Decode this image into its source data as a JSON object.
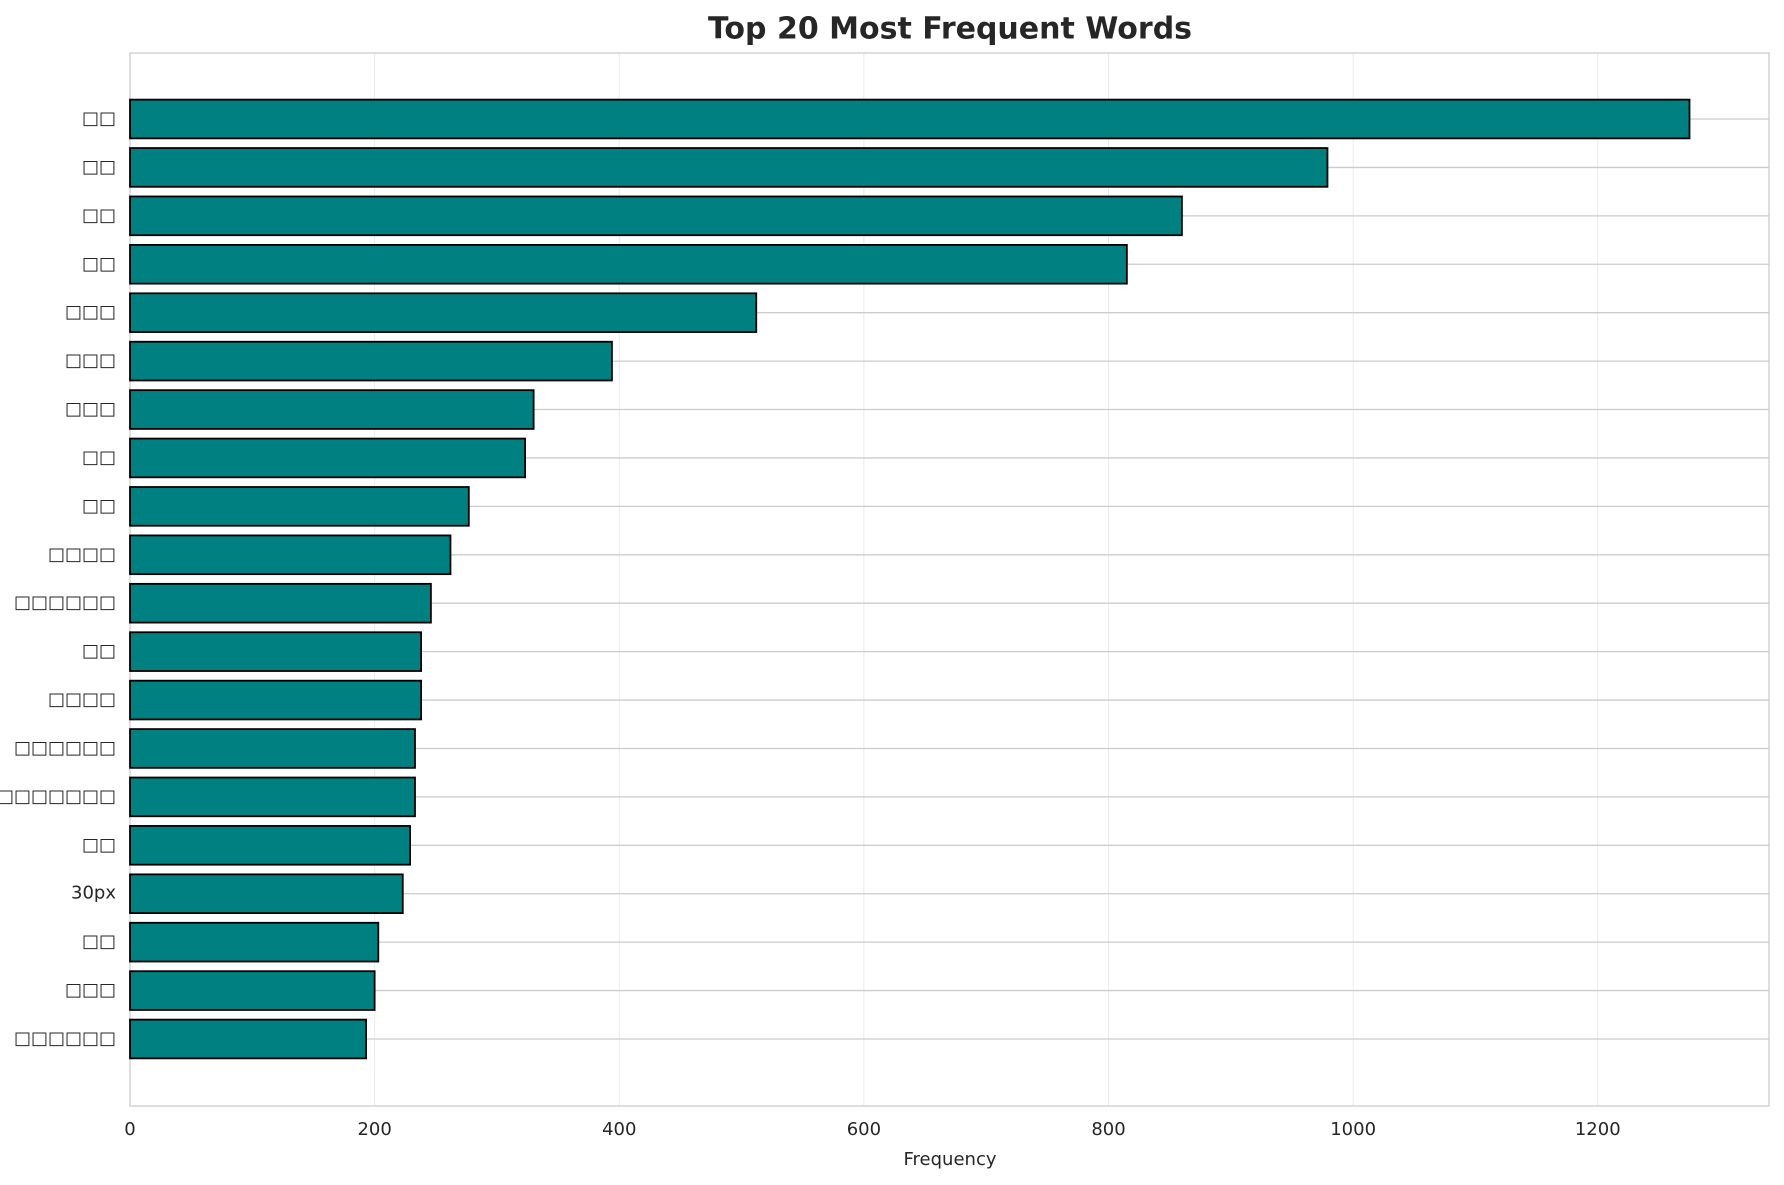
{
  "chart_data": {
    "type": "barh",
    "title": "Top 20 Most Frequent Words",
    "xlabel": "Frequency",
    "categories": [
      "□□",
      "□□",
      "□□",
      "□□",
      "□□□",
      "□□□",
      "□□□",
      "□□",
      "□□",
      "□□□□",
      "□□□□□□",
      "□□",
      "□□□□",
      "□□□□□□",
      "□□□□□□□□",
      "□□",
      "30px",
      "□□",
      "□□□",
      "□□□□□□"
    ],
    "values": [
      1275,
      979,
      860,
      815,
      512,
      394,
      330,
      323,
      277,
      262,
      246,
      238,
      238,
      233,
      233,
      229,
      223,
      203,
      200,
      193
    ],
    "color": "#008080",
    "edgecolor": "#000000",
    "xlim": [
      0,
      1340
    ],
    "xticks": [
      0,
      200,
      400,
      600,
      800,
      1000,
      1200
    ],
    "grid": true
  }
}
